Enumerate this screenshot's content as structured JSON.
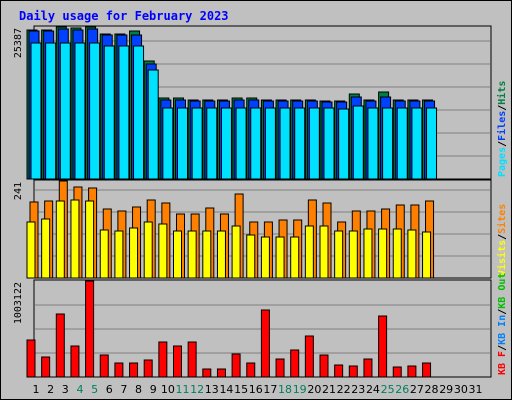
{
  "title": "Daily usage for February 2023",
  "colors": {
    "title": "#0000ff",
    "hits": "#008040",
    "files": "#0040ff",
    "pages": "#00e0ff",
    "visits": "#ffff00",
    "sites": "#ff8000",
    "kb_in": "#0080ff",
    "kb_out": "#00c000",
    "kb_f": "#ff0000",
    "weekend_day": "#00805c",
    "weekday": "#000000",
    "plot_bg": "#c0c0c0",
    "frame_bg": "#c0c0c0",
    "grid": "#808080"
  },
  "chart_data": [
    {
      "type": "bar",
      "panel": "hits-files-pages",
      "legend_placement": "right",
      "grid": true,
      "ymax_label": "25387",
      "ylim": [
        0,
        25387
      ],
      "legend": [
        "Pages",
        "Files",
        "Hits"
      ],
      "categories": [
        "1",
        "2",
        "3",
        "4",
        "5",
        "6",
        "7",
        "8",
        "9",
        "10",
        "11",
        "12",
        "13",
        "14",
        "15",
        "16",
        "17",
        "18",
        "19",
        "20",
        "21",
        "22",
        "23",
        "24",
        "25",
        "26",
        "27",
        "28",
        "29",
        "30",
        "31"
      ],
      "series": [
        {
          "name": "Hits",
          "values": [
            24900,
            24900,
            25387,
            25200,
            25387,
            24300,
            24200,
            24700,
            19800,
            13600,
            13600,
            13300,
            13300,
            13300,
            13600,
            13600,
            13300,
            13300,
            13300,
            13300,
            13100,
            13100,
            14300,
            13300,
            14600,
            13300,
            13300,
            13300,
            0,
            0,
            0
          ]
        },
        {
          "name": "Files",
          "values": [
            24800,
            24800,
            25000,
            24900,
            25100,
            24100,
            24000,
            24100,
            19300,
            13300,
            13300,
            13100,
            13100,
            13100,
            13300,
            13300,
            13100,
            13100,
            13100,
            13100,
            12900,
            12900,
            13800,
            13100,
            13800,
            13100,
            13100,
            13100,
            0,
            0,
            0
          ]
        },
        {
          "name": "Pages",
          "values": [
            22800,
            22800,
            22800,
            22800,
            22800,
            22300,
            22300,
            22300,
            18200,
            12000,
            12000,
            12000,
            12000,
            12000,
            12000,
            12000,
            12000,
            12000,
            12000,
            12000,
            12000,
            11800,
            12200,
            12000,
            12000,
            12000,
            12000,
            12000,
            0,
            0,
            0
          ]
        }
      ]
    },
    {
      "type": "bar",
      "panel": "visits-sites",
      "legend_placement": "right",
      "grid": true,
      "ymax_label": "241",
      "ylim": [
        0,
        241
      ],
      "legend": [
        "Visits",
        "Sites"
      ],
      "categories": [
        "1",
        "2",
        "3",
        "4",
        "5",
        "6",
        "7",
        "8",
        "9",
        "10",
        "11",
        "12",
        "13",
        "14",
        "15",
        "16",
        "17",
        "18",
        "19",
        "20",
        "21",
        "22",
        "23",
        "24",
        "25",
        "26",
        "27",
        "28",
        "29",
        "30",
        "31"
      ],
      "series": [
        {
          "name": "Sites",
          "values": [
            190,
            192,
            241,
            226,
            225,
            173,
            168,
            176,
            194,
            187,
            159,
            159,
            174,
            160,
            208,
            139,
            140,
            145,
            145,
            195,
            186,
            139,
            168,
            166,
            173,
            183,
            183,
            192,
            0,
            0,
            0
          ]
        },
        {
          "name": "Visits",
          "values": [
            141,
            148,
            193,
            195,
            193,
            121,
            117,
            125,
            141,
            136,
            117,
            117,
            117,
            117,
            131,
            109,
            104,
            104,
            104,
            131,
            131,
            117,
            117,
            122,
            122,
            122,
            121,
            116,
            0,
            0,
            0
          ]
        }
      ]
    },
    {
      "type": "bar",
      "panel": "kbytes",
      "legend_placement": "right",
      "grid": true,
      "ymax_label": "1003122",
      "ylim": [
        0,
        1003122
      ],
      "legend": [
        "KB F",
        "KB In",
        "KB Out"
      ],
      "categories": [
        "1",
        "2",
        "3",
        "4",
        "5",
        "6",
        "7",
        "8",
        "9",
        "10",
        "11",
        "12",
        "13",
        "14",
        "15",
        "16",
        "17",
        "18",
        "19",
        "20",
        "21",
        "22",
        "23",
        "24",
        "25",
        "26",
        "27",
        "28",
        "29",
        "30",
        "31"
      ],
      "series": [
        {
          "name": "KB F",
          "values": [
            390000,
            220000,
            660000,
            335000,
            1003122,
            240000,
            150000,
            150000,
            190000,
            370000,
            330000,
            370000,
            90000,
            90000,
            250000,
            150000,
            700000,
            200000,
            290000,
            430000,
            240000,
            130000,
            120000,
            200000,
            640000,
            110000,
            120000,
            160000,
            0,
            0,
            0
          ]
        }
      ]
    }
  ]
}
